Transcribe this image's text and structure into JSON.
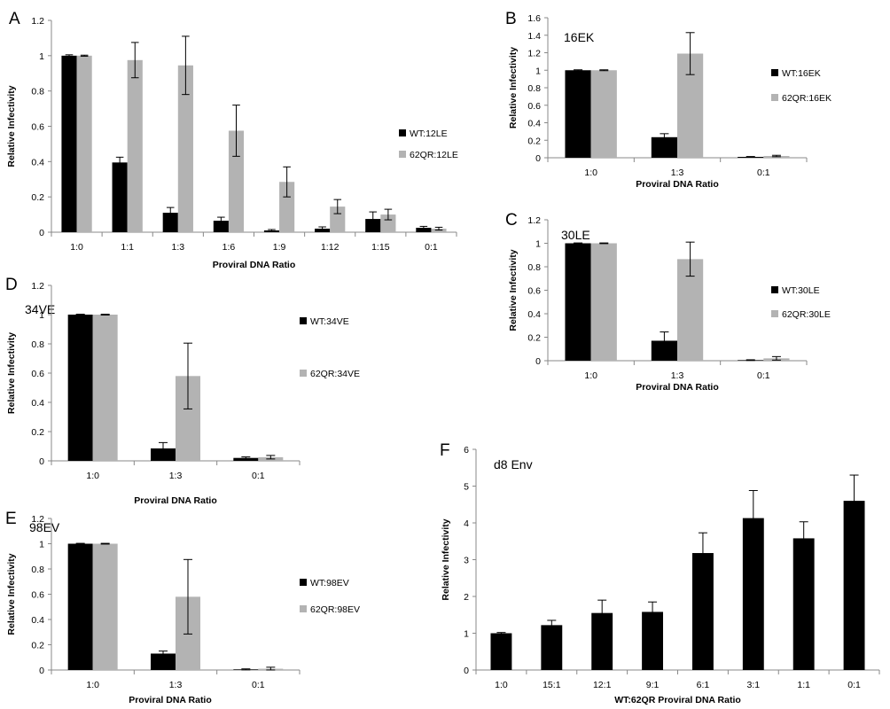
{
  "chart_data": [
    {
      "panel": "A",
      "type": "bar",
      "title": "",
      "xlabel": "Proviral DNA Ratio",
      "ylabel": "Relative Infectivity",
      "ylim": [
        0,
        1.2
      ],
      "yticks": [
        "0",
        "0.2",
        "0.4",
        "0.6",
        "0.8",
        "1",
        "1.2"
      ],
      "categories": [
        "1:0",
        "1:1",
        "1:3",
        "1:6",
        "1:9",
        "1:12",
        "1:15",
        "0:1"
      ],
      "legend_position": "right",
      "series": [
        {
          "name": "WT:12LE",
          "color": "#000000",
          "values": [
            1.0,
            0.395,
            0.11,
            0.065,
            0.01,
            0.02,
            0.075,
            0.025
          ],
          "errors": [
            0.005,
            0.03,
            0.03,
            0.02,
            0.005,
            0.01,
            0.04,
            0.008
          ]
        },
        {
          "name": "62QR:12LE",
          "color": "#b3b3b3",
          "values": [
            1.0,
            0.975,
            0.945,
            0.575,
            0.285,
            0.145,
            0.1,
            0.02
          ],
          "errors": [
            0.003,
            0.1,
            0.165,
            0.145,
            0.085,
            0.04,
            0.03,
            0.008
          ]
        }
      ]
    },
    {
      "panel": "B",
      "type": "bar",
      "title": "16EK",
      "xlabel": "Proviral DNA Ratio",
      "ylabel": "Relative Infectivity",
      "ylim": [
        0,
        1.6
      ],
      "yticks": [
        "0",
        "0.2",
        "0.4",
        "0.6",
        "0.8",
        "1",
        "1.2",
        "1.4",
        "1.6"
      ],
      "categories": [
        "1:0",
        "1:3",
        "0:1"
      ],
      "legend_position": "right",
      "series": [
        {
          "name": "WT:16EK",
          "color": "#000000",
          "values": [
            1.0,
            0.235,
            0.01
          ],
          "errors": [
            0.005,
            0.04,
            0.004
          ]
        },
        {
          "name": "62QR:16EK",
          "color": "#b3b3b3",
          "values": [
            1.0,
            1.19,
            0.02
          ],
          "errors": [
            0.005,
            0.24,
            0.008
          ]
        }
      ]
    },
    {
      "panel": "C",
      "type": "bar",
      "title": "30LE",
      "xlabel": "Proviral DNA Ratio",
      "ylabel": "Relative Infectivity",
      "ylim": [
        0,
        1.2
      ],
      "yticks": [
        "0",
        "0.2",
        "0.4",
        "0.6",
        "0.8",
        "1",
        "1.2"
      ],
      "categories": [
        "1:0",
        "1:3",
        "0:1"
      ],
      "legend_position": "right",
      "series": [
        {
          "name": "WT:30LE",
          "color": "#000000",
          "values": [
            1.0,
            0.17,
            0.005
          ],
          "errors": [
            0.003,
            0.075,
            0.003
          ]
        },
        {
          "name": "62QR:30LE",
          "color": "#b3b3b3",
          "values": [
            1.0,
            0.865,
            0.02
          ],
          "errors": [
            0.003,
            0.145,
            0.015
          ]
        }
      ]
    },
    {
      "panel": "D",
      "type": "bar",
      "title": "34VE",
      "xlabel": "Proviral DNA Ratio",
      "ylabel": "Relative Infectivity",
      "ylim": [
        0,
        1.2
      ],
      "yticks": [
        "0",
        "0.2",
        "0.4",
        "0.6",
        "0.8",
        "1",
        "1.2"
      ],
      "categories": [
        "1:0",
        "1:3",
        "0:1"
      ],
      "legend_position": "right",
      "series": [
        {
          "name": "WT:34VE",
          "color": "#000000",
          "values": [
            1.0,
            0.085,
            0.02
          ],
          "errors": [
            0.003,
            0.04,
            0.007
          ]
        },
        {
          "name": "62QR:34VE",
          "color": "#b3b3b3",
          "values": [
            1.0,
            0.58,
            0.025
          ],
          "errors": [
            0.003,
            0.225,
            0.012
          ]
        }
      ]
    },
    {
      "panel": "E",
      "type": "bar",
      "title": "98EV",
      "xlabel": "Proviral DNA Ratio",
      "ylabel": "Relative Infectivity",
      "ylim": [
        0,
        1.2
      ],
      "yticks": [
        "0",
        "0.2",
        "0.4",
        "0.6",
        "0.8",
        "1",
        "1.2"
      ],
      "categories": [
        "1:0",
        "1:3",
        "0:1"
      ],
      "legend_position": "right",
      "series": [
        {
          "name": "WT:98EV",
          "color": "#000000",
          "values": [
            1.0,
            0.13,
            0.005
          ],
          "errors": [
            0.003,
            0.02,
            0.004
          ]
        },
        {
          "name": "62QR:98EV",
          "color": "#b3b3b3",
          "values": [
            1.0,
            0.58,
            0.01
          ],
          "errors": [
            0.003,
            0.295,
            0.012
          ]
        }
      ]
    },
    {
      "panel": "F",
      "type": "bar",
      "title": "d8 Env",
      "xlabel": "WT:62QR Proviral DNA Ratio",
      "ylabel": "Relative Infectivity",
      "ylim": [
        0,
        6
      ],
      "yticks": [
        "0",
        "1",
        "2",
        "3",
        "4",
        "5",
        "6"
      ],
      "categories": [
        "1:0",
        "15:1",
        "12:1",
        "9:1",
        "6:1",
        "3:1",
        "1:1",
        "0:1"
      ],
      "legend_position": "none",
      "series": [
        {
          "name": "",
          "color": "#000000",
          "values": [
            1.0,
            1.22,
            1.55,
            1.58,
            3.18,
            4.13,
            3.58,
            4.6
          ],
          "errors": [
            0.02,
            0.13,
            0.35,
            0.27,
            0.55,
            0.75,
            0.45,
            0.7
          ]
        }
      ]
    }
  ]
}
